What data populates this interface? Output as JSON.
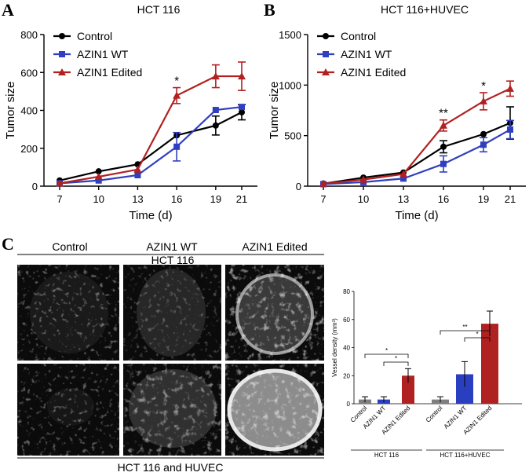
{
  "colors": {
    "control": "#000000",
    "wt": "#2f3fbf",
    "edited": "#b22020",
    "bar_control": "#7f7f7f",
    "bar_wt": "#2a3fc0",
    "bar_edited": "#b02222",
    "tissue_bg": "#0a0a0a"
  },
  "panel_A": {
    "letter": "A"
  },
  "panel_B": {
    "letter": "B"
  },
  "panel_C": {
    "letter": "C",
    "col_headers": [
      "Control",
      "AZIN1 WT",
      "AZIN1 Edited"
    ],
    "row_top_label": "HCT 116",
    "row_bottom_label": "HCT 116 and HUVEC"
  },
  "chart_data": [
    {
      "type": "line",
      "title": "HCT 116",
      "xlabel": "Time (d)",
      "ylabel": "Tumor size",
      "x": [
        7,
        10,
        13,
        16,
        19,
        21
      ],
      "ylim": [
        0,
        800
      ],
      "yticks": [
        0,
        200,
        400,
        600,
        800
      ],
      "legend": "top-left",
      "series": [
        {
          "name": "Control",
          "marker": "circle",
          "color": "#000000",
          "values": [
            30,
            78,
            115,
            268,
            320,
            390
          ],
          "errors": [
            0,
            0,
            0,
            0,
            50,
            40
          ]
        },
        {
          "name": "AZIN1 WT",
          "marker": "square",
          "color": "#2f3fbf",
          "values": [
            15,
            30,
            58,
            208,
            402,
            418
          ],
          "errors": [
            0,
            0,
            0,
            75,
            0,
            0
          ]
        },
        {
          "name": "AZIN1 Edited",
          "marker": "triangle",
          "color": "#b22020",
          "values": [
            15,
            50,
            88,
            478,
            580,
            580
          ],
          "errors": [
            0,
            0,
            0,
            42,
            60,
            75
          ]
        }
      ],
      "annotations": [
        {
          "x": 16,
          "text": "*"
        }
      ]
    },
    {
      "type": "line",
      "title": "HCT 116+HUVEC",
      "xlabel": "Time (d)",
      "ylabel": "Tumor size",
      "x": [
        7,
        10,
        13,
        16,
        19,
        21
      ],
      "ylim": [
        0,
        1500
      ],
      "yticks": [
        0,
        500,
        1000,
        1500
      ],
      "legend": "top-left",
      "series": [
        {
          "name": "Control",
          "marker": "circle",
          "color": "#000000",
          "values": [
            25,
            85,
            135,
            390,
            515,
            625
          ],
          "errors": [
            0,
            0,
            0,
            60,
            0,
            160
          ]
        },
        {
          "name": "AZIN1 WT",
          "marker": "square",
          "color": "#2f3fbf",
          "values": [
            20,
            40,
            75,
            220,
            410,
            560
          ],
          "errors": [
            0,
            0,
            0,
            80,
            70,
            90
          ]
        },
        {
          "name": "AZIN1 Edited",
          "marker": "triangle",
          "color": "#b22020",
          "values": [
            25,
            65,
            120,
            600,
            840,
            965
          ],
          "errors": [
            0,
            0,
            0,
            55,
            85,
            75
          ]
        }
      ],
      "annotations": [
        {
          "x": 16,
          "text": "**"
        },
        {
          "x": 19,
          "text": "*"
        }
      ]
    },
    {
      "type": "bar",
      "ylabel": "Vessel density (mm³)",
      "ylim": [
        0,
        80
      ],
      "yticks": [
        0,
        20,
        40,
        60,
        80
      ],
      "groups": [
        {
          "label": "HCT 116",
          "categories": [
            "Control",
            "AZIN1 WT",
            "AZIN1 Edited"
          ],
          "values": [
            3,
            3,
            20
          ],
          "errors": [
            2,
            2,
            5
          ]
        },
        {
          "label": "HCT 116+HUVEC",
          "categories": [
            "Control",
            "AZIN1 WT",
            "AZIN1 Edited"
          ],
          "values": [
            3,
            21,
            57
          ],
          "errors": [
            2,
            9,
            9
          ]
        }
      ],
      "significance": [
        {
          "group": 0,
          "from": 0,
          "to": 2,
          "text": "*"
        },
        {
          "group": 0,
          "from": 1,
          "to": 2,
          "text": "*"
        },
        {
          "group": 1,
          "from": 0,
          "to": 2,
          "text": "**"
        },
        {
          "group": 1,
          "from": 1,
          "to": 2,
          "text": "*"
        }
      ]
    }
  ]
}
